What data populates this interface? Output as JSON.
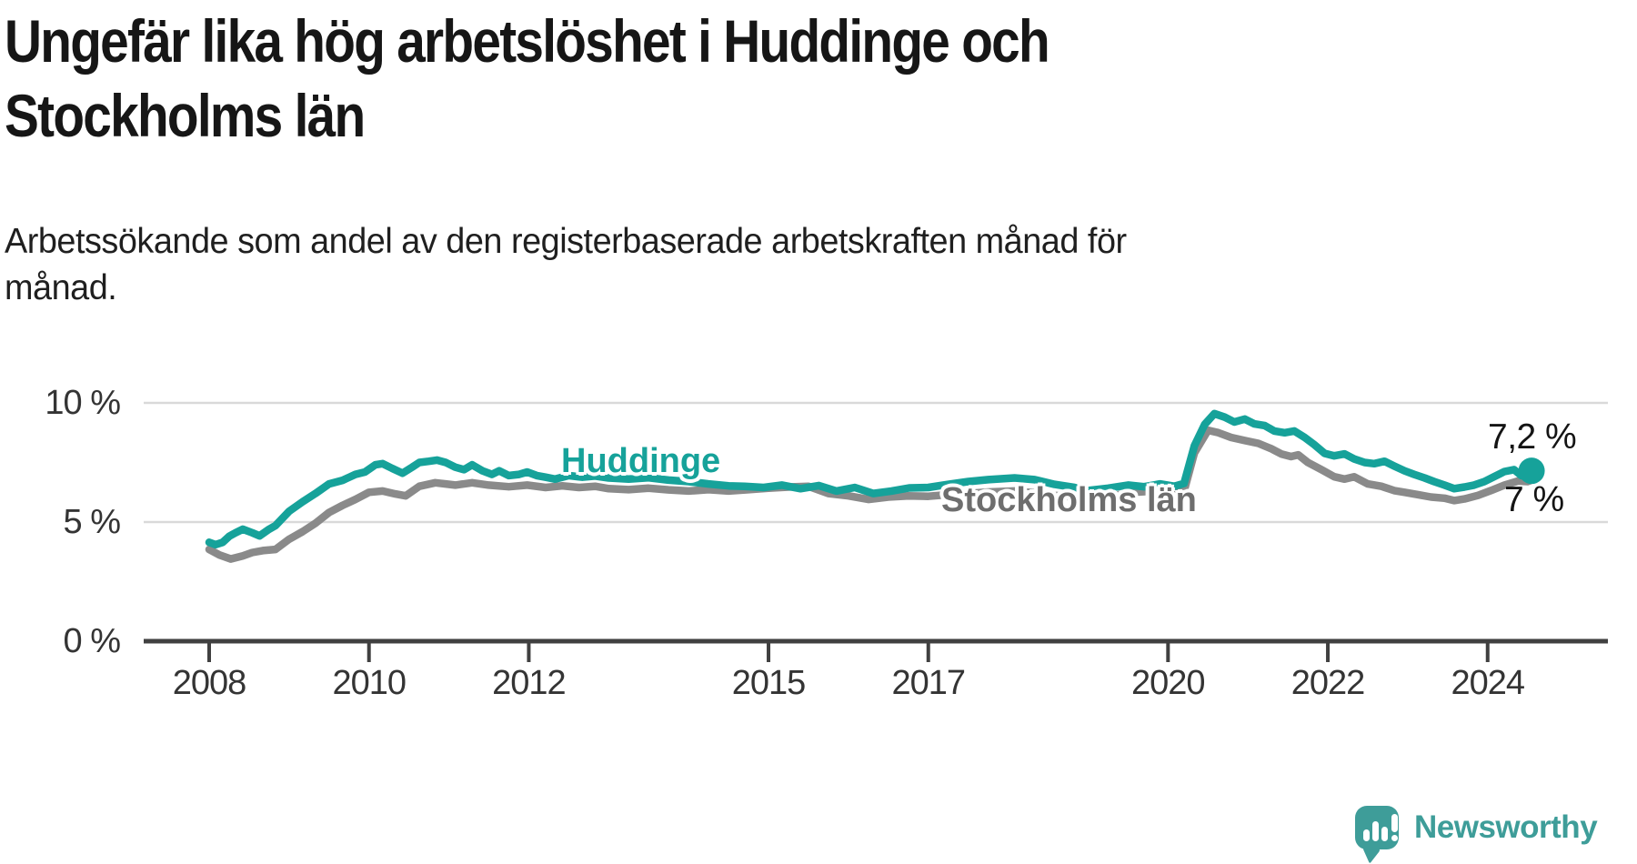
{
  "header": {
    "title_line1": "Ungefär lika hög arbetslöshet i Huddinge och",
    "title_line2": "Stockholms län",
    "subtitle_line1": "Arbetssökande som andel av den registerbaserade arbetskraften månad för",
    "subtitle_line2": "månad."
  },
  "footer": {
    "brand": "Newsworthy"
  },
  "colors": {
    "background": "#ffffff",
    "title": "#161616",
    "grid": "#d9d9d9",
    "axis": "#404040",
    "tick_label": "#343434",
    "huddinge": "#16a29a",
    "stockholm_line": "#8a8a8a",
    "stockholm_label": "#6e6e6e",
    "end_label": "#141414",
    "brand_teal": "#3e9d99"
  },
  "chart_data": {
    "type": "line",
    "title": "Ungefär lika hög arbetslöshet i Huddinge och Stockholms län",
    "subtitle": "Arbetssökande som andel av den registerbaserade arbetskraften månad för månad.",
    "xlabel": "",
    "ylabel": "",
    "x_unit": "decimal_year (monthly data)",
    "x_range": [
      2008.0,
      2025.2
    ],
    "ylim": [
      0,
      10.6
    ],
    "grid": "horizontal",
    "legend_position": "inline-labels",
    "y_ticks": [
      {
        "value": 0,
        "label": "0 %"
      },
      {
        "value": 5,
        "label": "5 %"
      },
      {
        "value": 10,
        "label": "10 %"
      }
    ],
    "x_ticks": [
      {
        "value": 2008,
        "label": "2008"
      },
      {
        "value": 2010,
        "label": "2010"
      },
      {
        "value": 2012,
        "label": "2012"
      },
      {
        "value": 2015,
        "label": "2015"
      },
      {
        "value": 2017,
        "label": "2017"
      },
      {
        "value": 2020,
        "label": "2020"
      },
      {
        "value": 2022,
        "label": "2022"
      },
      {
        "value": 2024,
        "label": "2024"
      }
    ],
    "series": [
      {
        "name": "Stockholms län",
        "color": "#8a8a8a",
        "label_color": "#6e6e6e",
        "end_label": "7 %",
        "end_dot": false,
        "points": [
          [
            2008.0,
            3.85
          ],
          [
            2008.13,
            3.62
          ],
          [
            2008.27,
            3.45
          ],
          [
            2008.42,
            3.58
          ],
          [
            2008.54,
            3.72
          ],
          [
            2008.67,
            3.8
          ],
          [
            2008.83,
            3.85
          ],
          [
            2009.0,
            4.28
          ],
          [
            2009.17,
            4.6
          ],
          [
            2009.33,
            4.95
          ],
          [
            2009.5,
            5.4
          ],
          [
            2009.67,
            5.7
          ],
          [
            2009.83,
            5.95
          ],
          [
            2010.0,
            6.25
          ],
          [
            2010.17,
            6.3
          ],
          [
            2010.33,
            6.18
          ],
          [
            2010.46,
            6.1
          ],
          [
            2010.63,
            6.5
          ],
          [
            2010.83,
            6.65
          ],
          [
            2010.96,
            6.6
          ],
          [
            2011.08,
            6.55
          ],
          [
            2011.29,
            6.65
          ],
          [
            2011.5,
            6.55
          ],
          [
            2011.75,
            6.48
          ],
          [
            2011.98,
            6.55
          ],
          [
            2012.21,
            6.45
          ],
          [
            2012.42,
            6.52
          ],
          [
            2012.63,
            6.45
          ],
          [
            2012.83,
            6.5
          ],
          [
            2013.0,
            6.4
          ],
          [
            2013.25,
            6.36
          ],
          [
            2013.5,
            6.42
          ],
          [
            2013.75,
            6.35
          ],
          [
            2014.0,
            6.3
          ],
          [
            2014.25,
            6.36
          ],
          [
            2014.5,
            6.3
          ],
          [
            2014.75,
            6.36
          ],
          [
            2015.0,
            6.42
          ],
          [
            2015.25,
            6.47
          ],
          [
            2015.5,
            6.5
          ],
          [
            2015.75,
            6.2
          ],
          [
            2016.0,
            6.1
          ],
          [
            2016.25,
            5.95
          ],
          [
            2016.5,
            6.05
          ],
          [
            2016.75,
            6.1
          ],
          [
            2017.0,
            6.08
          ],
          [
            2017.25,
            6.15
          ],
          [
            2017.5,
            6.2
          ],
          [
            2017.75,
            6.26
          ],
          [
            2018.08,
            6.3
          ],
          [
            2018.33,
            6.22
          ],
          [
            2018.58,
            6.12
          ],
          [
            2018.83,
            6.05
          ],
          [
            2019.08,
            6.02
          ],
          [
            2019.33,
            6.12
          ],
          [
            2019.58,
            6.25
          ],
          [
            2019.83,
            6.3
          ],
          [
            2020.08,
            6.35
          ],
          [
            2020.21,
            6.42
          ],
          [
            2020.33,
            7.9
          ],
          [
            2020.5,
            8.85
          ],
          [
            2020.63,
            8.75
          ],
          [
            2020.79,
            8.55
          ],
          [
            2020.96,
            8.42
          ],
          [
            2021.13,
            8.3
          ],
          [
            2021.29,
            8.08
          ],
          [
            2021.42,
            7.85
          ],
          [
            2021.54,
            7.75
          ],
          [
            2021.63,
            7.82
          ],
          [
            2021.75,
            7.5
          ],
          [
            2021.92,
            7.2
          ],
          [
            2022.08,
            6.9
          ],
          [
            2022.21,
            6.8
          ],
          [
            2022.33,
            6.9
          ],
          [
            2022.5,
            6.6
          ],
          [
            2022.67,
            6.5
          ],
          [
            2022.83,
            6.32
          ],
          [
            2022.96,
            6.25
          ],
          [
            2023.13,
            6.15
          ],
          [
            2023.29,
            6.05
          ],
          [
            2023.46,
            6.0
          ],
          [
            2023.58,
            5.9
          ],
          [
            2023.71,
            5.97
          ],
          [
            2023.88,
            6.12
          ],
          [
            2024.04,
            6.32
          ],
          [
            2024.21,
            6.55
          ],
          [
            2024.38,
            6.72
          ],
          [
            2024.5,
            6.7
          ],
          [
            2024.6,
            6.82
          ]
        ]
      },
      {
        "name": "Huddinge",
        "color": "#16a29a",
        "label_color": "#16a29a",
        "end_label": "7,2 %",
        "end_dot": true,
        "points": [
          [
            2008.0,
            4.15
          ],
          [
            2008.08,
            4.05
          ],
          [
            2008.17,
            4.15
          ],
          [
            2008.25,
            4.4
          ],
          [
            2008.33,
            4.55
          ],
          [
            2008.42,
            4.7
          ],
          [
            2008.54,
            4.55
          ],
          [
            2008.63,
            4.42
          ],
          [
            2008.75,
            4.7
          ],
          [
            2008.83,
            4.85
          ],
          [
            2009.0,
            5.45
          ],
          [
            2009.17,
            5.85
          ],
          [
            2009.33,
            6.2
          ],
          [
            2009.5,
            6.6
          ],
          [
            2009.67,
            6.75
          ],
          [
            2009.83,
            7.0
          ],
          [
            2009.95,
            7.1
          ],
          [
            2010.08,
            7.4
          ],
          [
            2010.17,
            7.45
          ],
          [
            2010.29,
            7.25
          ],
          [
            2010.42,
            7.05
          ],
          [
            2010.54,
            7.3
          ],
          [
            2010.63,
            7.5
          ],
          [
            2010.75,
            7.55
          ],
          [
            2010.85,
            7.6
          ],
          [
            2010.96,
            7.5
          ],
          [
            2011.08,
            7.3
          ],
          [
            2011.19,
            7.2
          ],
          [
            2011.29,
            7.4
          ],
          [
            2011.42,
            7.15
          ],
          [
            2011.54,
            7.0
          ],
          [
            2011.63,
            7.15
          ],
          [
            2011.75,
            6.95
          ],
          [
            2011.88,
            7.0
          ],
          [
            2011.98,
            7.1
          ],
          [
            2012.1,
            6.95
          ],
          [
            2012.21,
            6.88
          ],
          [
            2012.33,
            6.8
          ],
          [
            2012.5,
            6.95
          ],
          [
            2012.67,
            6.88
          ],
          [
            2012.83,
            6.93
          ],
          [
            2013.0,
            6.85
          ],
          [
            2013.25,
            6.8
          ],
          [
            2013.5,
            6.86
          ],
          [
            2013.75,
            6.76
          ],
          [
            2014.0,
            6.7
          ],
          [
            2014.25,
            6.6
          ],
          [
            2014.5,
            6.52
          ],
          [
            2014.7,
            6.5
          ],
          [
            2014.94,
            6.45
          ],
          [
            2015.17,
            6.55
          ],
          [
            2015.4,
            6.4
          ],
          [
            2015.63,
            6.53
          ],
          [
            2015.85,
            6.3
          ],
          [
            2016.08,
            6.45
          ],
          [
            2016.31,
            6.2
          ],
          [
            2016.54,
            6.3
          ],
          [
            2016.76,
            6.43
          ],
          [
            2017.0,
            6.45
          ],
          [
            2017.25,
            6.58
          ],
          [
            2017.5,
            6.7
          ],
          [
            2017.75,
            6.78
          ],
          [
            2018.08,
            6.85
          ],
          [
            2018.33,
            6.78
          ],
          [
            2018.58,
            6.58
          ],
          [
            2018.83,
            6.45
          ],
          [
            2019.0,
            6.32
          ],
          [
            2019.25,
            6.42
          ],
          [
            2019.5,
            6.55
          ],
          [
            2019.7,
            6.48
          ],
          [
            2019.9,
            6.6
          ],
          [
            2020.08,
            6.5
          ],
          [
            2020.2,
            6.62
          ],
          [
            2020.33,
            8.2
          ],
          [
            2020.46,
            9.1
          ],
          [
            2020.58,
            9.55
          ],
          [
            2020.71,
            9.4
          ],
          [
            2020.83,
            9.2
          ],
          [
            2020.96,
            9.32
          ],
          [
            2021.08,
            9.12
          ],
          [
            2021.21,
            9.05
          ],
          [
            2021.33,
            8.82
          ],
          [
            2021.46,
            8.75
          ],
          [
            2021.58,
            8.82
          ],
          [
            2021.71,
            8.55
          ],
          [
            2021.83,
            8.25
          ],
          [
            2021.96,
            7.88
          ],
          [
            2022.08,
            7.78
          ],
          [
            2022.21,
            7.86
          ],
          [
            2022.33,
            7.65
          ],
          [
            2022.46,
            7.5
          ],
          [
            2022.58,
            7.45
          ],
          [
            2022.71,
            7.55
          ],
          [
            2022.83,
            7.35
          ],
          [
            2022.96,
            7.15
          ],
          [
            2023.08,
            7.0
          ],
          [
            2023.21,
            6.85
          ],
          [
            2023.33,
            6.7
          ],
          [
            2023.46,
            6.55
          ],
          [
            2023.58,
            6.4
          ],
          [
            2023.71,
            6.47
          ],
          [
            2023.83,
            6.55
          ],
          [
            2023.96,
            6.7
          ],
          [
            2024.08,
            6.9
          ],
          [
            2024.21,
            7.12
          ],
          [
            2024.33,
            7.2
          ],
          [
            2024.42,
            6.95
          ],
          [
            2024.55,
            7.15
          ]
        ]
      }
    ]
  }
}
